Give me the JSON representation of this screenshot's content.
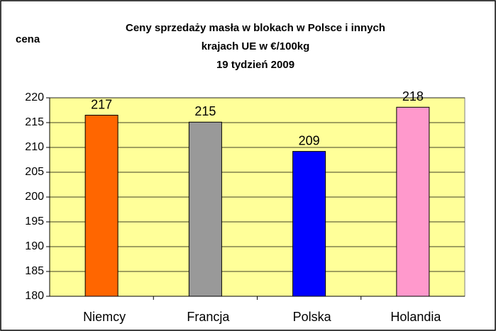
{
  "chart_data": {
    "type": "bar",
    "title": [
      "Ceny sprzedaży masła w blokach w Polsce i  innych",
      "krajach UE w €/100kg",
      "19 tydzień 2009"
    ],
    "y_label": "cena",
    "categories": [
      "Niemcy",
      "Francja",
      "Polska",
      "Holandia"
    ],
    "values": [
      216.5,
      215.1,
      209.2,
      218.1
    ],
    "value_labels": [
      "217",
      "215",
      "209",
      "218"
    ],
    "colors": [
      "#ff6600",
      "#999999",
      "#0000ff",
      "#ff99cc"
    ],
    "ylim": [
      180,
      220
    ],
    "yticks": [
      180,
      185,
      190,
      195,
      200,
      205,
      210,
      215,
      220
    ],
    "grid": true
  }
}
